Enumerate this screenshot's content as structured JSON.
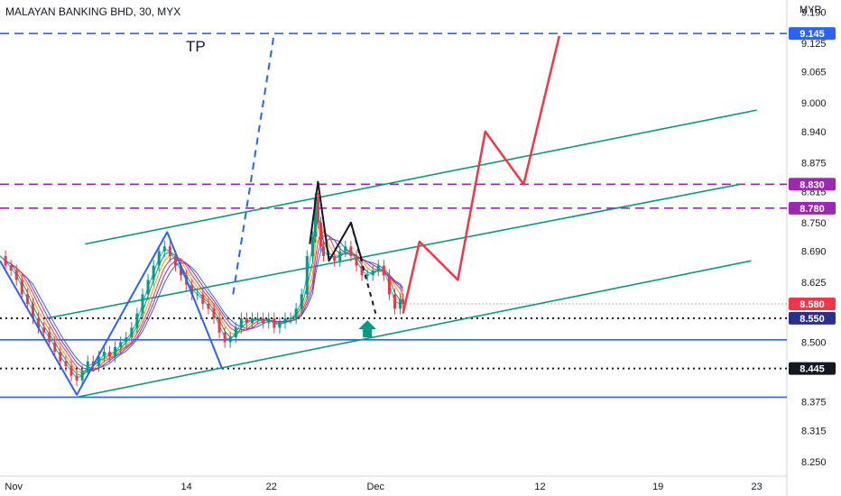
{
  "header": {
    "title": "MALAYAN BANKING BHD, 30, MYX"
  },
  "currency": "MYR",
  "annotations": {
    "tp_label": "TP"
  },
  "chart_data": {
    "type": "line",
    "title": "MALAYAN BANKING BHD, 30, MYX",
    "y_unit": "MYR",
    "ylim": [
      8.22,
      9.215
    ],
    "y_ticks": [
      "9.190",
      "9.125",
      "9.065",
      "9.000",
      "8.940",
      "8.875",
      "8.815",
      "8.750",
      "8.690",
      "8.625",
      "8.500",
      "8.375",
      "8.315",
      "8.250"
    ],
    "x_ticks": [
      {
        "label": "Nov",
        "t": 5
      },
      {
        "label": "14",
        "t": 68
      },
      {
        "label": "22",
        "t": 99
      },
      {
        "label": "Dec",
        "t": 137
      },
      {
        "label": "12",
        "t": 197
      },
      {
        "label": "19",
        "t": 240
      },
      {
        "label": "23",
        "t": 276
      }
    ],
    "xlim": [
      0,
      287
    ],
    "last_price": {
      "value": 8.58,
      "label": "8.580",
      "color": "#f23645"
    },
    "price_levels": [
      {
        "value": 9.145,
        "label": "9.145",
        "color": "#2962ff",
        "style": "dashed"
      },
      {
        "value": 8.83,
        "label": "8.830",
        "color": "#9c27b0",
        "style": "dashed"
      },
      {
        "value": 8.78,
        "label": "8.780",
        "color": "#9c27b0",
        "style": "dashed"
      },
      {
        "value": 8.55,
        "label": "8.550",
        "color": "#131722",
        "style": "dotted",
        "badge": "#2b2f8a"
      },
      {
        "value": 8.445,
        "label": "8.445",
        "color": "#131722",
        "style": "dotted",
        "badge": "#131722"
      },
      {
        "value": 8.505,
        "color": "#2962ff",
        "style": "solid"
      },
      {
        "value": 8.385,
        "color": "#2962ff",
        "style": "solid"
      }
    ],
    "channel_lines": [
      {
        "name": "",
        "color": "#089981",
        "points": [
          [
            31,
            8.705
          ],
          [
            276,
            8.985
          ]
        ]
      },
      {
        "name": "",
        "color": "#089981",
        "points": [
          [
            17,
            8.55
          ],
          [
            270,
            8.83
          ]
        ]
      },
      {
        "name": "",
        "color": "#089981",
        "points": [
          [
            28,
            8.385
          ],
          [
            274,
            8.67
          ]
        ]
      }
    ],
    "zigzag_blue": {
      "color": "#2962ff",
      "points": [
        [
          0,
          8.67
        ],
        [
          28,
          8.39
        ],
        [
          61,
          8.73
        ],
        [
          81,
          8.445
        ]
      ]
    },
    "dashed_blue": {
      "color": "#2962ff",
      "points": [
        [
          85,
          8.6
        ],
        [
          100,
          9.145
        ]
      ]
    },
    "zigzag_black": {
      "color": "#131722",
      "points": [
        [
          113,
          8.705
        ],
        [
          116,
          8.835
        ],
        [
          120,
          8.67
        ],
        [
          128,
          8.75
        ],
        [
          132,
          8.67
        ]
      ]
    },
    "dashed_black": {
      "color": "#131722",
      "points": [
        [
          128,
          8.75
        ],
        [
          137,
          8.56
        ]
      ]
    },
    "projection_red": {
      "color": "#f23645",
      "points": [
        [
          147,
          8.56
        ],
        [
          153,
          8.71
        ],
        [
          167,
          8.63
        ],
        [
          177,
          8.94
        ],
        [
          191,
          8.83
        ],
        [
          204,
          9.14
        ]
      ]
    },
    "up_arrow": {
      "t": 134,
      "y": 8.525,
      "color": "#089981"
    },
    "price_series": [
      [
        0,
        8.68
      ],
      [
        2,
        8.66
      ],
      [
        4,
        8.65
      ],
      [
        6,
        8.63
      ],
      [
        8,
        8.6
      ],
      [
        10,
        8.58
      ],
      [
        12,
        8.55
      ],
      [
        14,
        8.53
      ],
      [
        16,
        8.52
      ],
      [
        18,
        8.5
      ],
      [
        20,
        8.48
      ],
      [
        22,
        8.46
      ],
      [
        24,
        8.45
      ],
      [
        26,
        8.43
      ],
      [
        28,
        8.42
      ],
      [
        30,
        8.44
      ],
      [
        32,
        8.46
      ],
      [
        34,
        8.45
      ],
      [
        36,
        8.47
      ],
      [
        38,
        8.48
      ],
      [
        40,
        8.47
      ],
      [
        42,
        8.49
      ],
      [
        44,
        8.5
      ],
      [
        46,
        8.51
      ],
      [
        48,
        8.53
      ],
      [
        50,
        8.56
      ],
      [
        52,
        8.6
      ],
      [
        54,
        8.63
      ],
      [
        56,
        8.66
      ],
      [
        58,
        8.69
      ],
      [
        60,
        8.7
      ],
      [
        62,
        8.68
      ],
      [
        64,
        8.66
      ],
      [
        66,
        8.64
      ],
      [
        68,
        8.62
      ],
      [
        70,
        8.6
      ],
      [
        72,
        8.6
      ],
      [
        74,
        8.58
      ],
      [
        76,
        8.57
      ],
      [
        78,
        8.55
      ],
      [
        80,
        8.52
      ],
      [
        82,
        8.5
      ],
      [
        84,
        8.51
      ],
      [
        86,
        8.53
      ],
      [
        88,
        8.55
      ],
      [
        90,
        8.54
      ],
      [
        92,
        8.55
      ],
      [
        94,
        8.55
      ],
      [
        96,
        8.54
      ],
      [
        98,
        8.55
      ],
      [
        100,
        8.53
      ],
      [
        102,
        8.54
      ],
      [
        104,
        8.55
      ],
      [
        106,
        8.55
      ],
      [
        108,
        8.57
      ],
      [
        110,
        8.6
      ],
      [
        112,
        8.68
      ],
      [
        114,
        8.72
      ],
      [
        115,
        8.8
      ],
      [
        116,
        8.75
      ],
      [
        117,
        8.7
      ],
      [
        118,
        8.68
      ],
      [
        120,
        8.68
      ],
      [
        122,
        8.67
      ],
      [
        124,
        8.69
      ],
      [
        126,
        8.7
      ],
      [
        128,
        8.68
      ],
      [
        130,
        8.66
      ],
      [
        132,
        8.64
      ],
      [
        134,
        8.64
      ],
      [
        136,
        8.65
      ],
      [
        138,
        8.66
      ],
      [
        140,
        8.64
      ],
      [
        142,
        8.6
      ],
      [
        144,
        8.57
      ],
      [
        146,
        8.59
      ],
      [
        147,
        8.58
      ]
    ]
  }
}
